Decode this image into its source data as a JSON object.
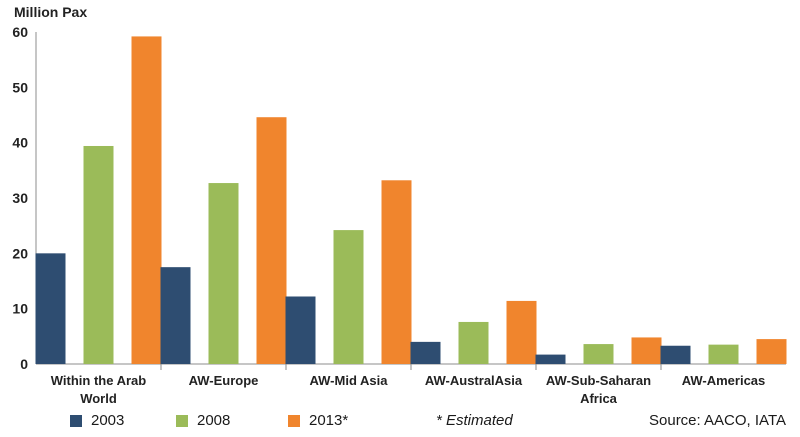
{
  "chart_data": {
    "type": "bar",
    "title": "",
    "ylabel": "Million Pax",
    "xlabel": "",
    "ylim": [
      0,
      60
    ],
    "yticks": [
      0,
      10,
      20,
      30,
      40,
      50,
      60
    ],
    "grid": false,
    "legend_position": "bottom",
    "categories": [
      "Within the Arab World",
      "AW-Europe",
      "AW-Mid Asia",
      "AW-AustralAsia",
      "AW-Sub-Saharan Africa",
      "AW-Americas"
    ],
    "category_lines": [
      [
        "Within the Arab",
        "World"
      ],
      [
        "AW-Europe"
      ],
      [
        "AW-Mid Asia"
      ],
      [
        "AW-AustralAsia"
      ],
      [
        "AW-Sub-Saharan",
        "Africa"
      ],
      [
        "AW-Americas"
      ]
    ],
    "series": [
      {
        "name": "2003",
        "color": "#2e4d71",
        "values": [
          20.0,
          17.5,
          12.2,
          4.0,
          1.7,
          3.3
        ]
      },
      {
        "name": "2008",
        "color": "#9bbb59",
        "values": [
          39.4,
          32.7,
          24.2,
          7.6,
          3.6,
          3.5
        ]
      },
      {
        "name": "2013*",
        "color": "#f0852d",
        "values": [
          59.2,
          44.6,
          33.2,
          11.4,
          4.8,
          4.5
        ]
      }
    ]
  },
  "footer": {
    "note": "* Estimated",
    "source": "Source: AACO, IATA"
  }
}
